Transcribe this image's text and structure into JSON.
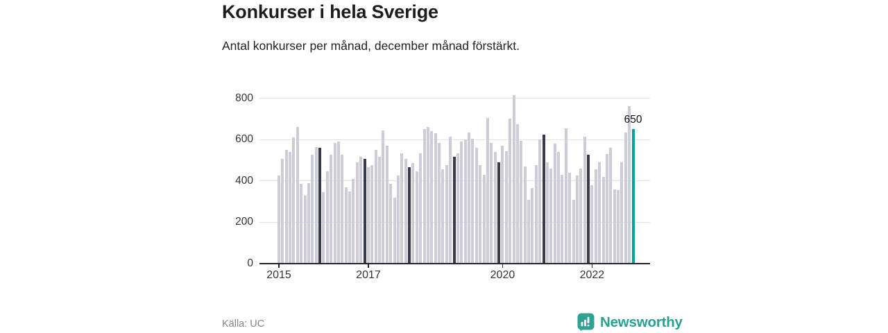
{
  "header": {
    "title": "Konkurser i hela Sverige",
    "subtitle": "Antal konkurser per månad, december månad förstärkt."
  },
  "footer": {
    "source": "Källa: UC",
    "brand": "Newsworthy"
  },
  "colors": {
    "bar": "#cfccd9",
    "december_bar": "#3a3a4d",
    "highlight_bar": "#0aa292",
    "axis": "#23232f",
    "gridline": "#e4e4e7",
    "brand_teal": "#2fa294"
  },
  "chart_data": {
    "type": "bar",
    "title": "Konkurser i hela Sverige",
    "subtitle": "Antal konkurser per månad, december månad förstärkt.",
    "unit": "konkurser per månad",
    "frequency": "monthly",
    "start_month": "2015-01",
    "end_month": "2022-12",
    "december_emphasized": true,
    "highlight_last_bar": true,
    "annotation": {
      "label": "650",
      "month_index": 95
    },
    "ylim": [
      0,
      838
    ],
    "y_ticks": [
      0,
      200,
      400,
      600,
      800
    ],
    "x_ticks": [
      {
        "label": "2015",
        "month_index": 0
      },
      {
        "label": "2017",
        "month_index": 24
      },
      {
        "label": "2020",
        "month_index": 60
      },
      {
        "label": "2022",
        "month_index": 84
      }
    ],
    "values": [
      425,
      505,
      550,
      540,
      610,
      660,
      385,
      330,
      390,
      525,
      565,
      560,
      345,
      445,
      525,
      585,
      590,
      525,
      370,
      350,
      410,
      490,
      515,
      505,
      465,
      475,
      550,
      515,
      645,
      570,
      385,
      320,
      425,
      535,
      505,
      465,
      485,
      445,
      535,
      650,
      660,
      640,
      630,
      585,
      455,
      475,
      615,
      515,
      535,
      590,
      600,
      635,
      605,
      560,
      475,
      430,
      705,
      585,
      540,
      490,
      570,
      545,
      700,
      815,
      675,
      595,
      470,
      310,
      365,
      475,
      600,
      625,
      490,
      460,
      580,
      540,
      430,
      655,
      440,
      310,
      425,
      460,
      615,
      525,
      380,
      455,
      490,
      420,
      530,
      560,
      360,
      355,
      490,
      635,
      760,
      650
    ]
  }
}
